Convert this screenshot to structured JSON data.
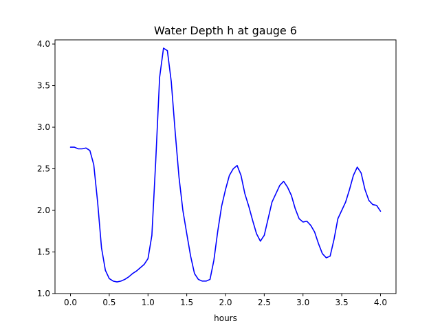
{
  "chart_data": {
    "type": "line",
    "title": "Water Depth h at gauge 6",
    "xlabel": "hours",
    "ylabel": "",
    "xlim": [
      -0.2,
      4.2
    ],
    "ylim": [
      1.0,
      4.05
    ],
    "xticks": [
      0.0,
      0.5,
      1.0,
      1.5,
      2.0,
      2.5,
      3.0,
      3.5,
      4.0
    ],
    "xtick_labels": [
      "0.0",
      "0.5",
      "1.0",
      "1.5",
      "2.0",
      "2.5",
      "3.0",
      "3.5",
      "4.0"
    ],
    "yticks": [
      1.0,
      1.5,
      2.0,
      2.5,
      3.0,
      3.5,
      4.0
    ],
    "ytick_labels": [
      "1.0",
      "1.5",
      "2.0",
      "2.5",
      "3.0",
      "3.5",
      "4.0"
    ],
    "grid": false,
    "series": [
      {
        "color": "#0000ff",
        "x": [
          0.0,
          0.05,
          0.1,
          0.15,
          0.2,
          0.25,
          0.3,
          0.35,
          0.4,
          0.45,
          0.5,
          0.55,
          0.6,
          0.65,
          0.7,
          0.75,
          0.8,
          0.85,
          0.9,
          0.95,
          1.0,
          1.05,
          1.1,
          1.15,
          1.2,
          1.25,
          1.3,
          1.35,
          1.4,
          1.45,
          1.5,
          1.55,
          1.6,
          1.65,
          1.7,
          1.75,
          1.8,
          1.85,
          1.9,
          1.95,
          2.0,
          2.05,
          2.1,
          2.15,
          2.2,
          2.25,
          2.3,
          2.35,
          2.4,
          2.45,
          2.5,
          2.55,
          2.6,
          2.65,
          2.7,
          2.75,
          2.8,
          2.85,
          2.9,
          2.95,
          3.0,
          3.05,
          3.1,
          3.15,
          3.2,
          3.25,
          3.3,
          3.35,
          3.4,
          3.45,
          3.5,
          3.55,
          3.6,
          3.65,
          3.7,
          3.75,
          3.8,
          3.85,
          3.9,
          3.95,
          4.0
        ],
        "y": [
          2.76,
          2.76,
          2.74,
          2.74,
          2.75,
          2.72,
          2.55,
          2.1,
          1.55,
          1.28,
          1.18,
          1.15,
          1.14,
          1.15,
          1.17,
          1.2,
          1.24,
          1.27,
          1.31,
          1.35,
          1.42,
          1.7,
          2.6,
          3.6,
          3.95,
          3.92,
          3.55,
          2.95,
          2.4,
          2.0,
          1.72,
          1.45,
          1.24,
          1.17,
          1.15,
          1.15,
          1.17,
          1.4,
          1.75,
          2.05,
          2.25,
          2.42,
          2.5,
          2.54,
          2.42,
          2.2,
          2.05,
          1.88,
          1.72,
          1.63,
          1.7,
          1.9,
          2.1,
          2.2,
          2.3,
          2.35,
          2.28,
          2.18,
          2.02,
          1.9,
          1.86,
          1.87,
          1.82,
          1.74,
          1.6,
          1.48,
          1.43,
          1.45,
          1.65,
          1.9,
          2.0,
          2.1,
          2.25,
          2.42,
          2.52,
          2.45,
          2.25,
          2.12,
          2.07,
          2.06,
          1.99
        ]
      }
    ]
  }
}
